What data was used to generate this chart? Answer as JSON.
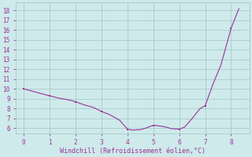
{
  "x": [
    0,
    0.3,
    0.7,
    1.0,
    1.3,
    1.7,
    2.0,
    2.3,
    2.7,
    3.0,
    3.3,
    3.7,
    4.0,
    4.2,
    4.5,
    4.7,
    5.0,
    5.3,
    5.5,
    5.7,
    6.0,
    6.2,
    6.5,
    6.8,
    7.0,
    7.3,
    7.6,
    8.0,
    8.3
  ],
  "y": [
    10.0,
    9.8,
    9.5,
    9.3,
    9.1,
    8.9,
    8.7,
    8.4,
    8.1,
    7.7,
    7.4,
    6.8,
    5.9,
    5.8,
    5.85,
    6.0,
    6.3,
    6.2,
    6.1,
    5.95,
    5.9,
    6.1,
    7.0,
    8.0,
    8.3,
    10.5,
    12.4,
    16.2,
    18.2
  ],
  "marker_x": [
    0,
    1,
    2,
    3,
    4,
    5,
    6,
    7,
    8
  ],
  "marker_y": [
    10.0,
    9.3,
    8.7,
    7.7,
    5.9,
    6.3,
    5.9,
    8.3,
    16.2
  ],
  "line_color": "#993399",
  "marker_color": "#993399",
  "bg_color": "#ceeaea",
  "grid_color": "#aacaca",
  "xlabel": "Windchill (Refroidissement éolien,°C)",
  "xlabel_color": "#993399",
  "ylabel_ticks": [
    6,
    7,
    8,
    9,
    10,
    11,
    12,
    13,
    14,
    15,
    16,
    17,
    18
  ],
  "xticks": [
    0,
    1,
    2,
    3,
    4,
    5,
    6,
    7,
    8
  ],
  "xlim": [
    -0.3,
    8.7
  ],
  "ylim": [
    5.5,
    18.8
  ],
  "tick_color": "#993399",
  "spine_color": "#aacaca",
  "tick_fontsize": 5.5,
  "xlabel_fontsize": 6.0
}
